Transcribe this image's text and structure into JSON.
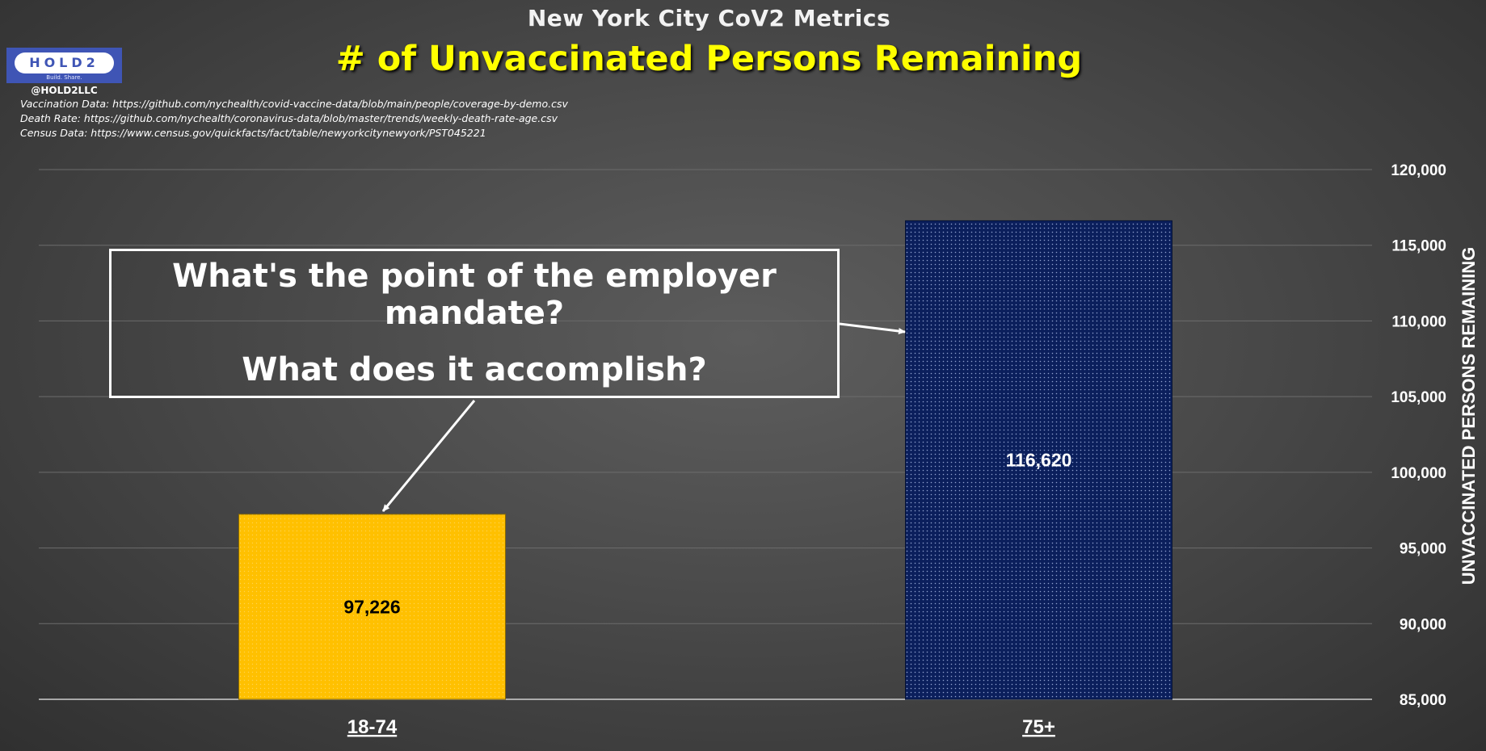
{
  "header": {
    "supertitle": "New York City CoV2 Metrics",
    "title": "# of Unvaccinated Persons Remaining"
  },
  "logo": {
    "name": "HOLD2",
    "tagline": "Build. Share.",
    "handle": "@HOLD2LLC"
  },
  "sources": [
    "Vaccination Data: https://github.com/nychealth/covid-vaccine-data/blob/main/people/coverage-by-demo.csv",
    "Death Rate: https://github.com/nychealth/coronavirus-data/blob/master/trends/weekly-death-rate-age.csv",
    "Census Data: https://www.census.gov/quickfacts/fact/table/newyorkcitynewyork/PST045221"
  ],
  "callout": {
    "line1": "What's the point of the employer mandate?",
    "line2": "What does it accomplish?"
  },
  "colors": {
    "bar_18_74": "#ffc000",
    "bar_75_plus": "#0b1f5c",
    "title": "#ffff00"
  },
  "chart_data": {
    "type": "bar",
    "title": "# of Unvaccinated Persons Remaining",
    "categories": [
      "18-74",
      "75+"
    ],
    "values": [
      97226,
      116620
    ],
    "value_labels": [
      "97,226",
      "116,620"
    ],
    "ylabel": "UNVACCINATED PERSONS REMAINING",
    "ylim": [
      85000,
      120000
    ],
    "yticks": [
      85000,
      90000,
      95000,
      100000,
      105000,
      110000,
      115000,
      120000
    ],
    "ytick_labels": [
      "85,000",
      "90,000",
      "95,000",
      "100,000",
      "105,000",
      "110,000",
      "115,000",
      "120,000"
    ],
    "y_axis_side": "right",
    "grid": true
  }
}
